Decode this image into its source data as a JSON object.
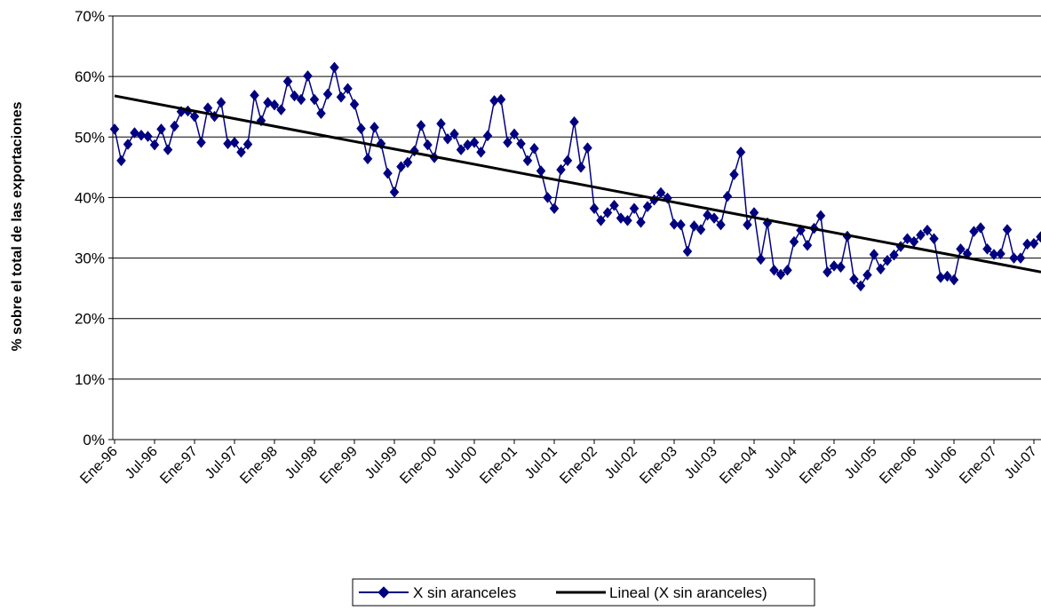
{
  "chart_data": {
    "type": "line",
    "title": "",
    "xlabel": "",
    "ylabel": "% sobre el total de las exportaciones",
    "ylim": [
      0,
      70
    ],
    "yticks": [
      "0%",
      "10%",
      "20%",
      "30%",
      "40%",
      "50%",
      "60%",
      "70%"
    ],
    "yvals": [
      0,
      10,
      20,
      30,
      40,
      50,
      60,
      70
    ],
    "grid": "horizontal",
    "legend_position": "bottom",
    "x_start": "Ene-96",
    "xticks": [
      "Ene-96",
      "Jul-96",
      "Ene-97",
      "Jul-97",
      "Ene-98",
      "Jul-98",
      "Ene-99",
      "Jul-99",
      "Ene-00",
      "Jul-00",
      "Ene-01",
      "Jul-01",
      "Ene-02",
      "Jul-02",
      "Ene-03",
      "Jul-03",
      "Ene-04",
      "Jul-04",
      "Ene-05",
      "Jul-05",
      "Ene-06",
      "Jul-06",
      "Ene-07",
      "Jul-07"
    ],
    "series": [
      {
        "name": "X sin aranceles",
        "color": "#000080",
        "marker": "diamond",
        "values": [
          51.3,
          46.1,
          48.8,
          50.7,
          50.3,
          50.1,
          48.7,
          51.3,
          47.9,
          51.8,
          54.2,
          54.3,
          53.4,
          49.1,
          54.8,
          53.4,
          55.7,
          48.9,
          49.1,
          47.5,
          48.8,
          56.9,
          52.7,
          55.7,
          55.3,
          54.5,
          59.2,
          56.8,
          56.2,
          60.1,
          56.2,
          53.9,
          57.1,
          61.5,
          56.6,
          58.0,
          55.4,
          51.4,
          46.4,
          51.6,
          48.9,
          44.0,
          40.9,
          45.1,
          45.8,
          47.7,
          51.9,
          48.7,
          46.6,
          52.2,
          49.7,
          50.5,
          47.9,
          48.7,
          49.1,
          47.5,
          50.2,
          56.0,
          56.2,
          49.1,
          50.5,
          48.9,
          46.1,
          48.1,
          44.4,
          40.0,
          38.2,
          44.6,
          46.1,
          52.5,
          45.0,
          48.2,
          38.2,
          36.2,
          37.5,
          38.7,
          36.6,
          36.2,
          38.2,
          35.9,
          38.5,
          39.6,
          40.8,
          39.9,
          35.6,
          35.5,
          31.1,
          35.3,
          34.7,
          37.1,
          36.6,
          35.5,
          40.2,
          43.8,
          47.5,
          35.5,
          37.5,
          29.8,
          35.8,
          28.0,
          27.3,
          28.0,
          32.7,
          34.6,
          32.1,
          34.9,
          37.0,
          27.7,
          28.7,
          28.5,
          33.6,
          26.5,
          25.4,
          27.2,
          30.6,
          28.2,
          29.6,
          30.5,
          31.9,
          33.2,
          32.7,
          33.8,
          34.6,
          33.2,
          26.8,
          27.0,
          26.4,
          31.5,
          30.7,
          34.4,
          35.0,
          31.5,
          30.6,
          30.7,
          34.7,
          30.0,
          30.0,
          32.3,
          32.4,
          33.5,
          35.5
        ]
      },
      {
        "name": "Lineal (X sin aranceles)",
        "color": "#000000",
        "trend": {
          "start": 56.8,
          "end": 27.7
        }
      }
    ]
  }
}
